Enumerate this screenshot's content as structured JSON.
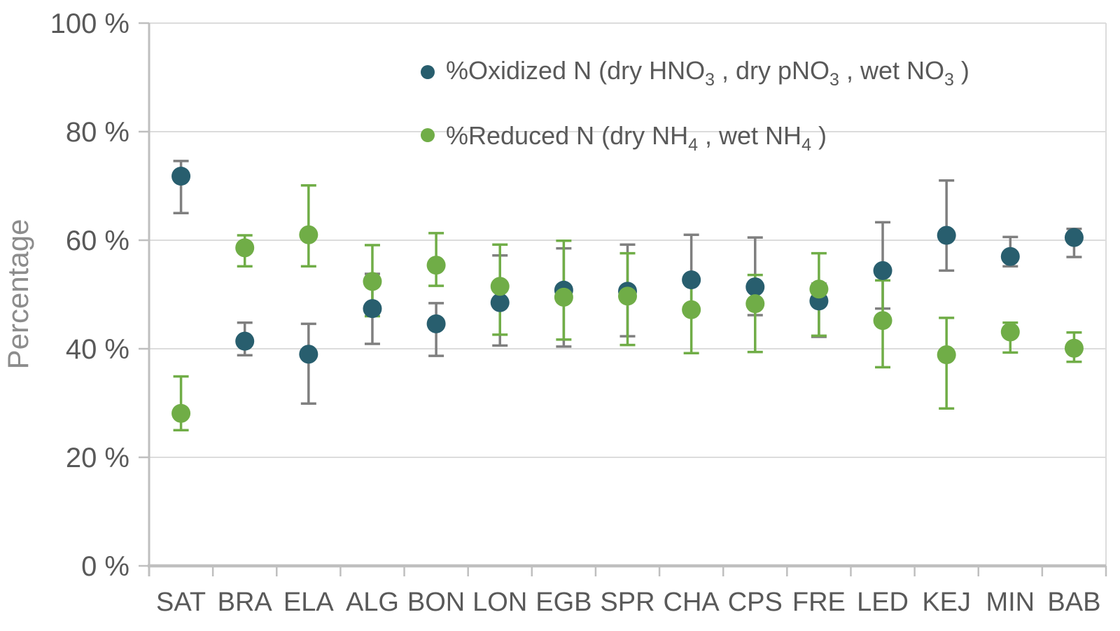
{
  "colors": {
    "oxidized_point": "#285E6E",
    "reduced_point": "#70AD47",
    "oxidized_error": "#7F7F7F",
    "reduced_error": "#70AD47",
    "gridline": "#DCDCDC",
    "axis_line": "#BFBFBF",
    "tick_text": "#595959",
    "legend_text": "#595959",
    "axis_title_text": "#8C8C8C",
    "background": "#FFFFFF"
  },
  "legend": [
    {
      "id": "oxidized",
      "marker_color": "#285E6E",
      "parts": [
        {
          "t": "%Oxidized N (dry HNO"
        },
        {
          "t": "3",
          "sub": true
        },
        {
          "t": " , dry pNO"
        },
        {
          "t": "3",
          "sub": true
        },
        {
          "t": " , wet NO"
        },
        {
          "t": "3",
          "sub": true
        },
        {
          "t": " )"
        }
      ]
    },
    {
      "id": "reduced",
      "marker_color": "#70AD47",
      "parts": [
        {
          "t": "%Reduced N (dry NH"
        },
        {
          "t": "4",
          "sub": true
        },
        {
          "t": " , wet NH"
        },
        {
          "t": "4",
          "sub": true
        },
        {
          "t": " )"
        }
      ]
    }
  ],
  "chart_data": {
    "type": "scatter",
    "title": "",
    "xlabel": "",
    "ylabel": "Percentage",
    "ylim": [
      0,
      100
    ],
    "grid": true,
    "legend_position": "top-center-inside",
    "ytick_values": [
      0,
      20,
      40,
      60,
      80,
      100
    ],
    "ytick_labels": [
      "0 %",
      "20 %",
      "40 %",
      "60 %",
      "80 %",
      "100 %"
    ],
    "categories": [
      "SAT",
      "BRA",
      "ELA",
      "ALG",
      "BON",
      "LON",
      "EGB",
      "SPR",
      "CHA",
      "CPS",
      "FRE",
      "LED",
      "KEJ",
      "MIN",
      "BAB"
    ],
    "series": [
      {
        "id": "oxidized",
        "name": "%Oxidized N (dry HNO3, dry pNO3, wet NO3)",
        "point_color": "#285E6E",
        "error_color": "#7F7F7F",
        "values": [
          71.8,
          41.4,
          39.0,
          47.4,
          44.6,
          48.5,
          50.8,
          50.6,
          52.7,
          51.4,
          48.8,
          54.4,
          60.9,
          57.0,
          60.5
        ],
        "err_low": [
          65.0,
          38.8,
          29.9,
          40.9,
          38.7,
          40.6,
          40.4,
          42.3,
          47.0,
          46.2,
          42.2,
          47.4,
          54.4,
          55.2,
          56.9
        ],
        "err_high": [
          74.6,
          44.8,
          44.6,
          53.8,
          48.4,
          57.2,
          58.5,
          59.2,
          61.0,
          60.5,
          52.0,
          63.3,
          71.0,
          60.6,
          62.1
        ]
      },
      {
        "id": "reduced",
        "name": "%Reduced N (dry NH4, wet NH4)",
        "point_color": "#70AD47",
        "error_color": "#70AD47",
        "values": [
          28.1,
          58.6,
          61.0,
          52.4,
          55.4,
          51.5,
          49.5,
          49.7,
          47.2,
          48.3,
          51.0,
          45.2,
          38.9,
          43.1,
          40.1
        ],
        "err_low": [
          25.0,
          55.2,
          55.2,
          46.0,
          51.6,
          42.6,
          41.7,
          40.7,
          39.2,
          39.4,
          42.4,
          36.6,
          29.0,
          39.3,
          37.6
        ],
        "err_high": [
          34.9,
          60.9,
          70.1,
          59.1,
          61.3,
          59.2,
          59.9,
          57.6,
          53.0,
          53.6,
          57.6,
          52.6,
          45.7,
          44.8,
          43.0
        ]
      }
    ]
  }
}
